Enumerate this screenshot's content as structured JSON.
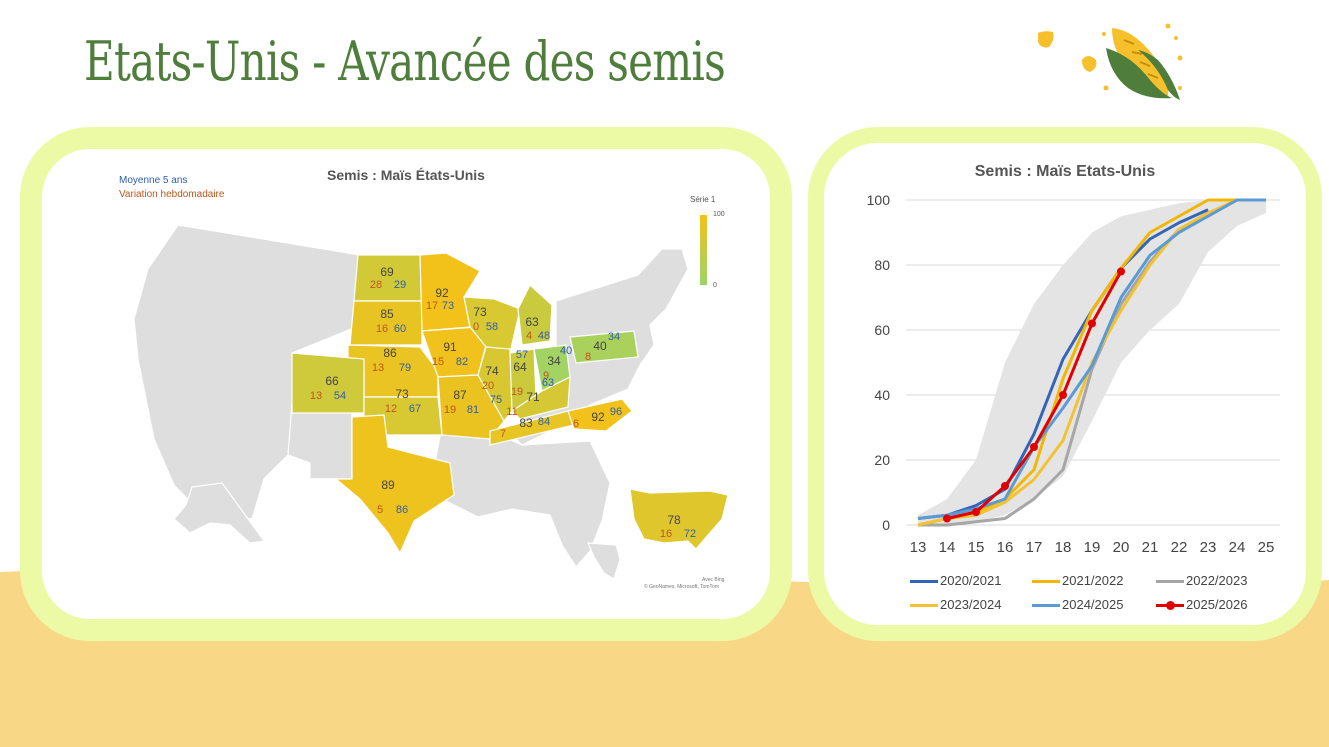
{
  "page": {
    "title": "Etats-Unis - Avancée des semis",
    "colors": {
      "title": "#4e7d3c",
      "panel_border": "#edfaa5",
      "band": "#f8d887",
      "corn": "#f5c02b",
      "leaf": "#4e7d3c"
    },
    "icons": [
      "corn-icon",
      "kernel-icon"
    ]
  },
  "map": {
    "title": "Semis : Maïs États-Unis",
    "legend_avg": "Moyenne 5 ans",
    "legend_var": "Variation hebdomadaire",
    "scale_title": "Série 1",
    "scale_max": "100",
    "scale_min": "0",
    "credit_1": "Avec Bing",
    "credit_2": "© GeoNames, Microsoft, TomTom",
    "colors": {
      "high": "#f2c21a",
      "low": "#9cd468",
      "none": "#dedede",
      "value": "#444444",
      "avg": "#2e5fa8",
      "var": "#c0561b"
    },
    "states": [
      {
        "id": "ND",
        "value": "69",
        "var": "28",
        "avg": "29"
      },
      {
        "id": "SD",
        "value": "85",
        "var": "16",
        "avg": "60"
      },
      {
        "id": "NE",
        "value": "86",
        "var": "13",
        "avg": "79"
      },
      {
        "id": "CO",
        "value": "66",
        "var": "13",
        "avg": "54"
      },
      {
        "id": "KS",
        "value": "73",
        "var": "12",
        "avg": "67"
      },
      {
        "id": "MN",
        "value": "92",
        "var": "17",
        "avg": "73"
      },
      {
        "id": "IA",
        "value": "91",
        "var": "15",
        "avg": "82"
      },
      {
        "id": "MO",
        "value": "87",
        "var": "19",
        "avg": "81"
      },
      {
        "id": "WI",
        "value": "73",
        "var": "0",
        "avg": "58"
      },
      {
        "id": "MI",
        "value": "63",
        "var": "4",
        "avg": "48"
      },
      {
        "id": "IL",
        "value": "74",
        "var": "20",
        "avg": "75"
      },
      {
        "id": "IN",
        "value": "64",
        "var": "19",
        "avg": "57"
      },
      {
        "id": "OH",
        "value": "34",
        "var": "9",
        "avg": "40"
      },
      {
        "id": "PA",
        "value": "40",
        "var": "8",
        "avg": "34"
      },
      {
        "id": "KY",
        "value": "71",
        "var": "11",
        "avg": "63"
      },
      {
        "id": "TN",
        "value": "83",
        "var": "7",
        "avg": "84"
      },
      {
        "id": "NC",
        "value": "92",
        "var": "6",
        "avg": "96"
      },
      {
        "id": "TX",
        "value": "89",
        "var": "5",
        "avg": "86"
      },
      {
        "id": "US",
        "value": "78",
        "var": "16",
        "avg": "72"
      }
    ]
  },
  "chart_data": {
    "type": "line",
    "title": "Semis : Maïs Etats-Unis",
    "x": [
      13,
      14,
      15,
      16,
      17,
      18,
      19,
      20,
      21,
      22,
      23,
      24,
      25
    ],
    "ylim": [
      0,
      100
    ],
    "yticks": [
      0,
      20,
      40,
      60,
      80,
      100
    ],
    "grid": true,
    "legend": "bottom",
    "band": {
      "lower": [
        0,
        0,
        1,
        3,
        8,
        15,
        32,
        50,
        60,
        68,
        84,
        92,
        96
      ],
      "upper": [
        3,
        8,
        20,
        50,
        68,
        80,
        90,
        95,
        97,
        99,
        100,
        100,
        100
      ],
      "color": "#e4e4e4"
    },
    "series": [
      {
        "name": "2020/2021",
        "color": "#3465b8",
        "values": [
          2,
          3,
          6,
          11,
          28,
          51,
          66,
          79,
          88,
          93,
          97,
          null,
          null
        ]
      },
      {
        "name": "2021/2022",
        "color": "#f2b705",
        "values": [
          0,
          2,
          4,
          8,
          17,
          45,
          66,
          79,
          90,
          95,
          100,
          100,
          100
        ]
      },
      {
        "name": "2022/2023",
        "color": "#a6a6a6",
        "values": [
          0,
          0,
          1,
          2,
          8,
          17,
          48,
          68,
          81,
          91,
          95,
          100,
          100
        ]
      },
      {
        "name": "2023/2024",
        "color": "#f2c232",
        "values": [
          0,
          2,
          3,
          7,
          14,
          26,
          50,
          66,
          80,
          91,
          96,
          100,
          100
        ]
      },
      {
        "name": "2024/2025",
        "color": "#5b9bd5",
        "values": [
          2,
          3,
          5,
          8,
          24,
          36,
          49,
          70,
          83,
          90,
          95,
          100,
          100
        ]
      },
      {
        "name": "2025/2026",
        "color": "#e00000",
        "values": [
          null,
          2,
          4,
          12,
          24,
          40,
          62,
          78,
          null,
          null,
          null,
          null,
          null
        ]
      }
    ]
  }
}
